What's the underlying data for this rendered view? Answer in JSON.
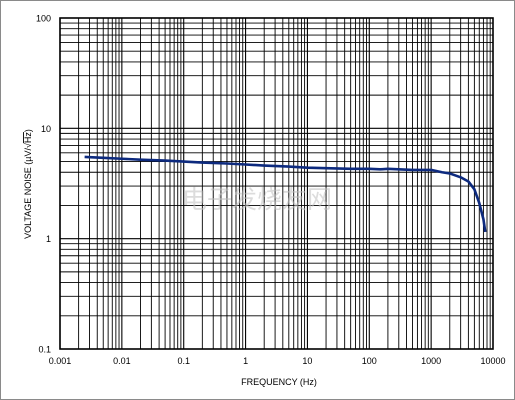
{
  "chart_data": {
    "type": "line",
    "xscale": "log",
    "yscale": "log",
    "xlim": [
      0.001,
      10000
    ],
    "ylim": [
      0.1,
      100
    ],
    "xlabel": "FREQUENCY (Hz)",
    "ylabel_prefix": "VOLTAGE NOISE (µV/",
    "ylabel_radicand": "Hz",
    "ylabel_suffix": ")",
    "x_ticks": [
      {
        "value": 0.001,
        "label": "0.001"
      },
      {
        "value": 0.01,
        "label": "0.01"
      },
      {
        "value": 0.1,
        "label": "0.1"
      },
      {
        "value": 1,
        "label": "1"
      },
      {
        "value": 10,
        "label": "10"
      },
      {
        "value": 100,
        "label": "100"
      },
      {
        "value": 1000,
        "label": "1000"
      },
      {
        "value": 10000,
        "label": "10000"
      }
    ],
    "y_ticks": [
      {
        "value": 0.1,
        "label": "0.1"
      },
      {
        "value": 1,
        "label": "1"
      },
      {
        "value": 10,
        "label": "10"
      },
      {
        "value": 100,
        "label": "100"
      }
    ],
    "grid": true,
    "color": "#0d2a7e",
    "series": [
      {
        "x": [
          0.0025,
          0.005,
          0.01,
          0.02,
          0.05,
          0.1,
          0.2,
          0.5,
          1,
          2,
          5,
          10,
          20,
          50,
          80,
          100,
          150,
          200,
          300,
          500,
          800,
          1000,
          1500,
          2000,
          3000,
          4000,
          5000,
          6000,
          7000,
          7500
        ],
        "y": [
          5.5,
          5.4,
          5.3,
          5.2,
          5.1,
          5.0,
          4.9,
          4.8,
          4.7,
          4.6,
          4.5,
          4.4,
          4.35,
          4.3,
          4.3,
          4.3,
          4.25,
          4.3,
          4.25,
          4.2,
          4.2,
          4.2,
          4.0,
          3.9,
          3.6,
          3.3,
          2.8,
          2.1,
          1.5,
          1.15
        ]
      }
    ]
  },
  "watermark": "电子发烧友网"
}
